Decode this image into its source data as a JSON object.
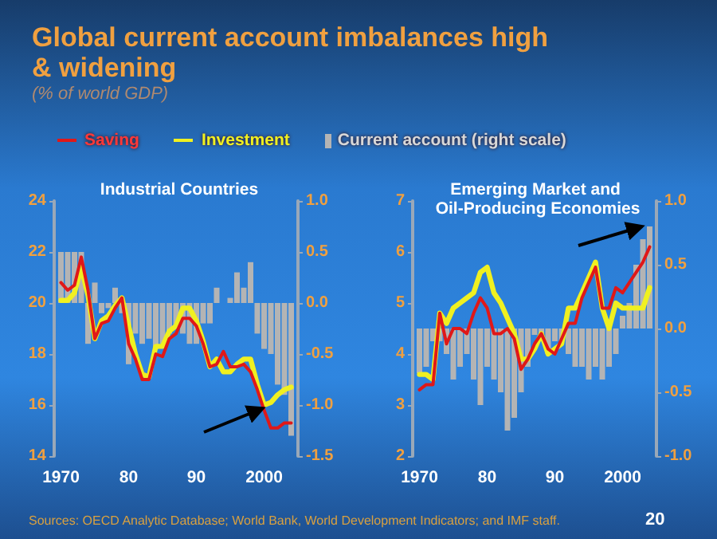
{
  "chart_data": [
    {
      "type": "line",
      "title": "Global current account imbalances high & widening",
      "subtitle": "(% of world GDP)",
      "xlabel": "Industrial Countries",
      "legend": "top",
      "grid": false,
      "marker": "none",
      "line_style": "solid",
      "xlim": [
        1969,
        2005
      ],
      "xticks": [
        {
          "value": 1970,
          "label": "1970"
        },
        {
          "value": 1980,
          "label": "80"
        },
        {
          "value": 1990,
          "label": "90"
        },
        {
          "value": 2000,
          "label": "2000"
        }
      ],
      "ylim": [
        14,
        24
      ],
      "yticks": [
        14,
        16,
        18,
        20,
        22,
        24
      ],
      "y2lim": [
        -1.5,
        1.0
      ],
      "y2ticks": [
        {
          "value": -1.5,
          "label": "-1.5"
        },
        {
          "value": -1.0,
          "label": "-1.0"
        },
        {
          "value": -0.5,
          "label": "-0.5"
        },
        {
          "value": 0,
          "label": "0.0"
        },
        {
          "value": 0.5,
          "label": "0.5"
        },
        {
          "value": 1.0,
          "label": "1.0"
        }
      ],
      "x": [
        1970,
        1971,
        1972,
        1973,
        1974,
        1975,
        1976,
        1977,
        1978,
        1979,
        1980,
        1981,
        1982,
        1983,
        1984,
        1985,
        1986,
        1987,
        1988,
        1989,
        1990,
        1991,
        1992,
        1993,
        1994,
        1995,
        1996,
        1997,
        1998,
        1999,
        2000,
        2001,
        2002,
        2003,
        2004
      ],
      "series": [
        {
          "name": "Current account (right scale)",
          "type": "bar",
          "axis": "y2",
          "color": "#b4b4b4",
          "values": [
            0.5,
            0.5,
            0.5,
            0.5,
            -0.4,
            0.2,
            -0.1,
            -0.05,
            0.15,
            -0.1,
            -0.6,
            -0.3,
            -0.4,
            -0.35,
            -0.45,
            -0.4,
            -0.3,
            -0.25,
            -0.3,
            -0.4,
            -0.4,
            -0.2,
            -0.2,
            0.15,
            0.0,
            0.05,
            0.3,
            0.15,
            0.4,
            -0.3,
            -0.45,
            -0.5,
            -0.8,
            -0.9,
            -1.3
          ]
        },
        {
          "name": "Investment",
          "color": "#f0f020",
          "values": [
            20.1,
            20.1,
            20.4,
            21.4,
            20.3,
            18.6,
            19.3,
            19.5,
            19.9,
            20.2,
            19.1,
            18.0,
            17.2,
            17.1,
            18.3,
            18.3,
            18.9,
            19.1,
            19.8,
            19.8,
            19.3,
            18.5,
            17.5,
            17.8,
            17.3,
            17.3,
            17.6,
            17.8,
            17.8,
            16.8,
            16.0,
            16.1,
            16.4,
            16.6,
            16.7
          ]
        },
        {
          "name": "Saving",
          "color": "#e01818",
          "values": [
            20.8,
            20.5,
            20.7,
            21.8,
            20.5,
            18.6,
            19.2,
            19.3,
            19.8,
            20.2,
            18.4,
            17.8,
            17.0,
            17.0,
            18.0,
            17.9,
            18.6,
            18.8,
            19.4,
            19.4,
            19.1,
            18.4,
            17.5,
            17.6,
            18.1,
            17.5,
            17.5,
            17.6,
            17.3,
            16.6,
            15.8,
            15.1,
            15.1,
            15.3,
            15.3
          ]
        }
      ],
      "annotations": [
        "Sources: OECD Analytic Database; World Bank, World Development Indicators; and IMF staff.",
        "20"
      ]
    },
    {
      "type": "line",
      "xlabel": "Emerging Market and Oil-Producing Economies",
      "grid": false,
      "marker": "none",
      "line_style": "solid",
      "xlim": [
        1969,
        2005
      ],
      "xticks": [
        {
          "value": 1970,
          "label": "1970"
        },
        {
          "value": 1980,
          "label": "80"
        },
        {
          "value": 1990,
          "label": "90"
        },
        {
          "value": 2000,
          "label": "2000"
        }
      ],
      "ylim": [
        2,
        7
      ],
      "yticks": [
        2,
        3,
        4,
        5,
        6,
        7
      ],
      "y2lim": [
        -1.0,
        1.0
      ],
      "y2ticks": [
        {
          "value": -1.0,
          "label": "-1.0"
        },
        {
          "value": -0.5,
          "label": "-0.5"
        },
        {
          "value": 0,
          "label": "0.0"
        },
        {
          "value": 0.5,
          "label": "0.5"
        },
        {
          "value": 1.0,
          "label": "1.0"
        }
      ],
      "x": [
        1970,
        1971,
        1972,
        1973,
        1974,
        1975,
        1976,
        1977,
        1978,
        1979,
        1980,
        1981,
        1982,
        1983,
        1984,
        1985,
        1986,
        1987,
        1988,
        1989,
        1990,
        1991,
        1992,
        1993,
        1994,
        1995,
        1996,
        1997,
        1998,
        1999,
        2000,
        2001,
        2002,
        2003,
        2004
      ],
      "series": [
        {
          "type": "bar",
          "axis": "y2",
          "color": "#b4b4b4",
          "values": [
            -0.35,
            -0.3,
            -0.1,
            -0.1,
            -0.2,
            -0.4,
            -0.3,
            -0.2,
            -0.4,
            -0.6,
            -0.3,
            -0.4,
            -0.5,
            -0.8,
            -0.7,
            -0.5,
            -0.3,
            -0.05,
            -0.1,
            -0.2,
            -0.1,
            -0.1,
            -0.2,
            -0.3,
            -0.3,
            -0.4,
            -0.3,
            -0.4,
            -0.3,
            -0.2,
            0.1,
            0.2,
            0.5,
            0.7,
            0.8
          ]
        },
        {
          "color": "#f0f020",
          "values": [
            3.6,
            3.6,
            3.5,
            4.8,
            4.6,
            4.9,
            5.0,
            5.1,
            5.2,
            5.6,
            5.7,
            5.2,
            5.0,
            4.7,
            4.4,
            3.9,
            3.9,
            4.1,
            4.4,
            4.0,
            4.1,
            4.2,
            4.9,
            4.9,
            5.2,
            5.5,
            5.8,
            4.9,
            4.5,
            5.0,
            4.9,
            4.9,
            4.9,
            4.9,
            5.3
          ]
        },
        {
          "color": "#e01818",
          "values": [
            3.3,
            3.4,
            3.4,
            4.8,
            4.2,
            4.5,
            4.5,
            4.4,
            4.8,
            5.1,
            4.9,
            4.4,
            4.4,
            4.5,
            4.3,
            3.7,
            3.9,
            4.2,
            4.4,
            4.1,
            4.0,
            4.3,
            4.6,
            4.6,
            5.1,
            5.4,
            5.7,
            4.9,
            4.9,
            5.3,
            5.2,
            5.4,
            5.6,
            5.8,
            6.1
          ]
        }
      ]
    }
  ]
}
